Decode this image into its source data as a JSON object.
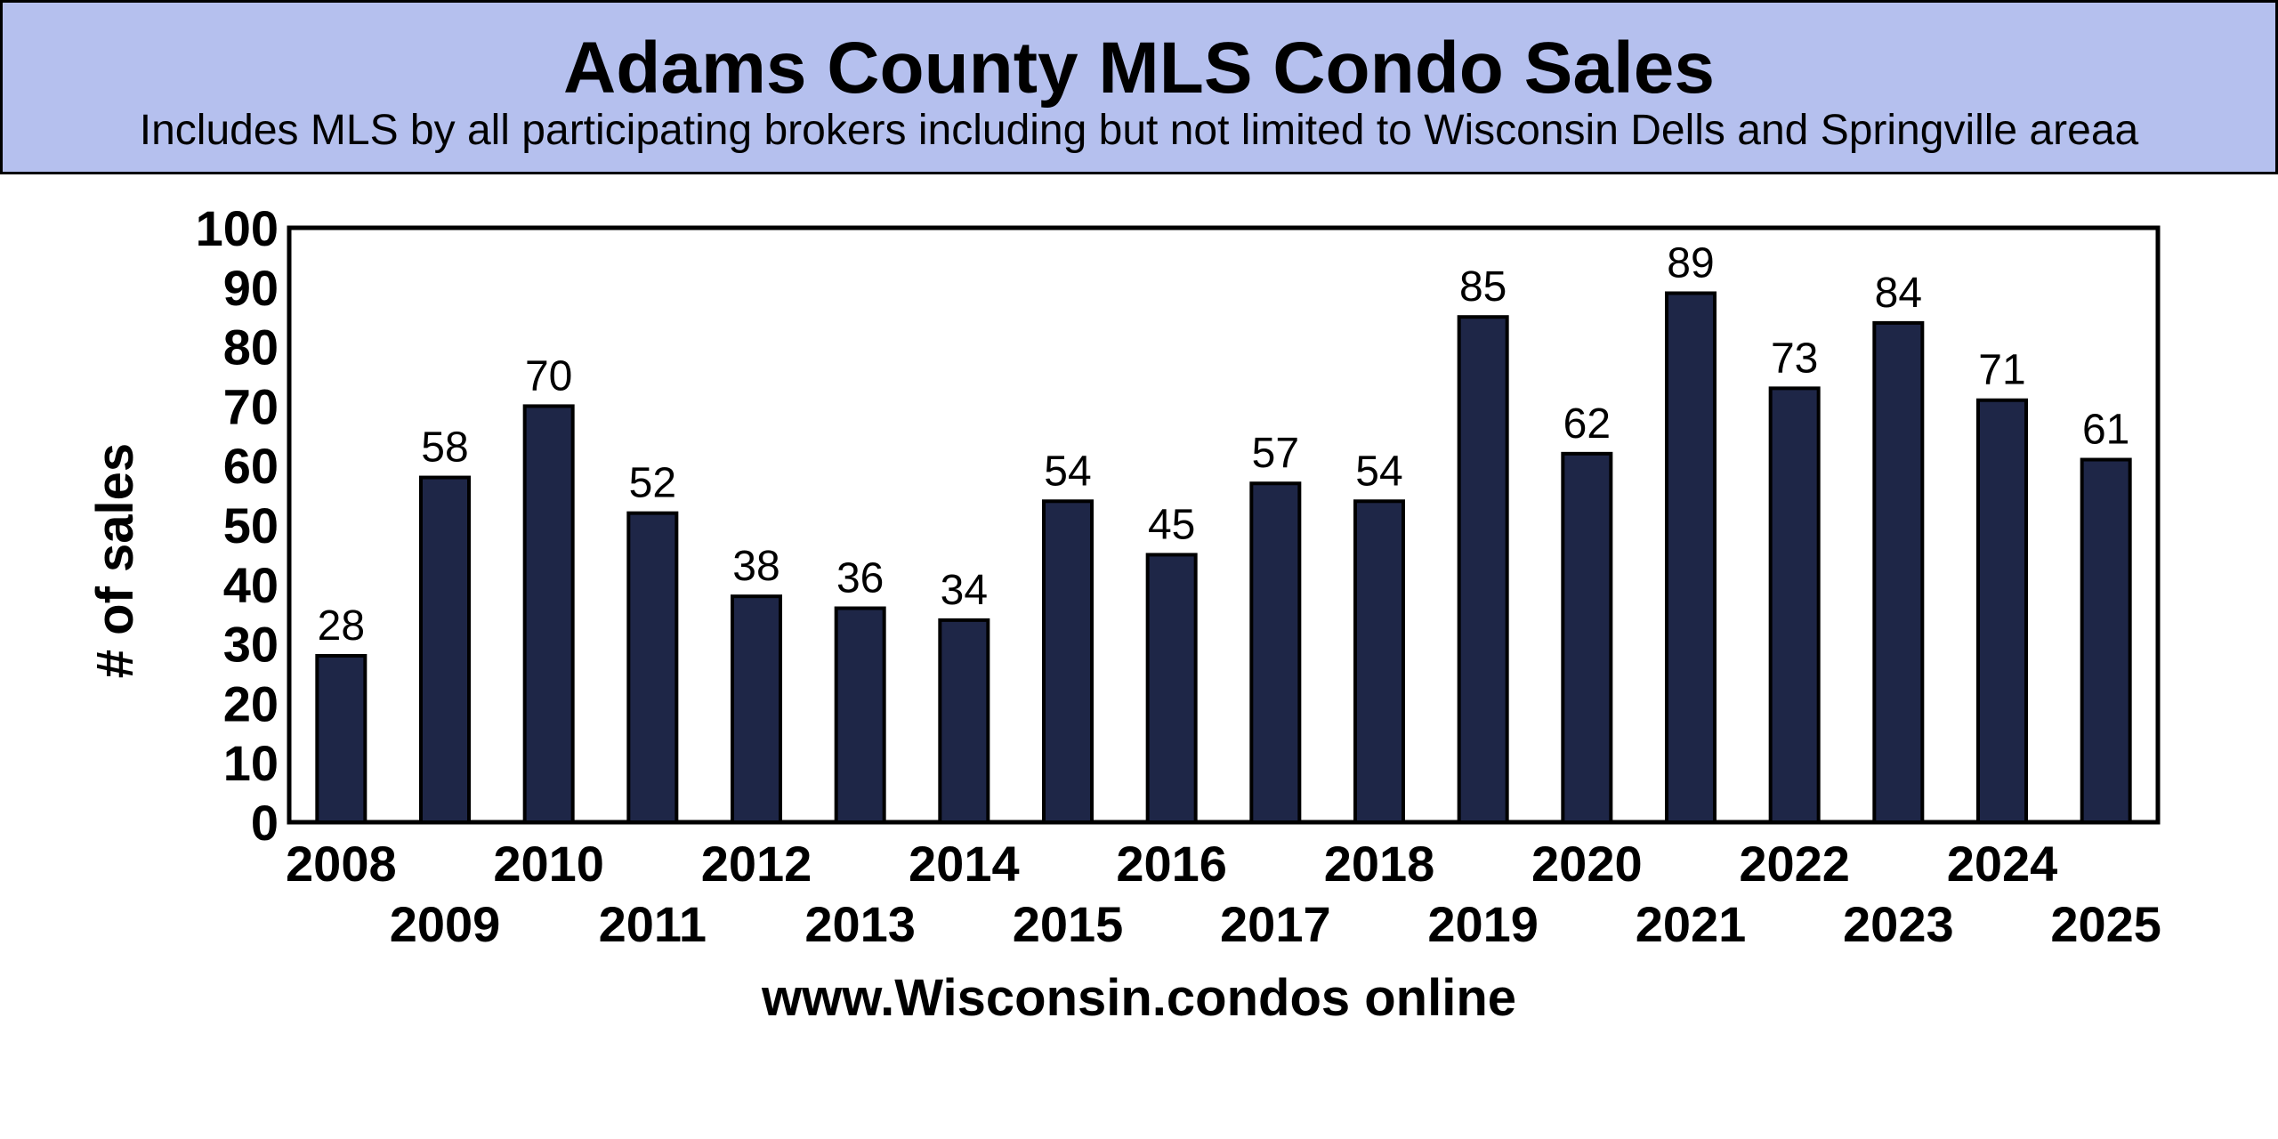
{
  "colors": {
    "header_bg": "#b5c0ee",
    "bar": "#1e2647",
    "bar_outline": "#000000",
    "text": "#000000"
  },
  "chart_data": {
    "type": "bar",
    "title": "Adams County MLS Condo Sales",
    "subtitle": "Includes MLS by all participating brokers including but not limited to Wisconsin Dells and Springville areaa",
    "xlabel": "www.Wisconsin.condos online",
    "ylabel": "# of sales",
    "categories": [
      "2008",
      "2009",
      "2010",
      "2011",
      "2012",
      "2013",
      "2014",
      "2015",
      "2016",
      "2017",
      "2018",
      "2019",
      "2020",
      "2021",
      "2022",
      "2023",
      "2024",
      "2025"
    ],
    "values": [
      28,
      58,
      70,
      52,
      38,
      36,
      34,
      54,
      45,
      57,
      54,
      85,
      62,
      89,
      73,
      84,
      71,
      61
    ],
    "ylim": [
      0,
      100
    ],
    "yticks": [
      "0",
      "10",
      "20",
      "30",
      "40",
      "50",
      "60",
      "70",
      "80",
      "90",
      "100"
    ],
    "data_labels": true,
    "grid": false,
    "legend": "none"
  }
}
